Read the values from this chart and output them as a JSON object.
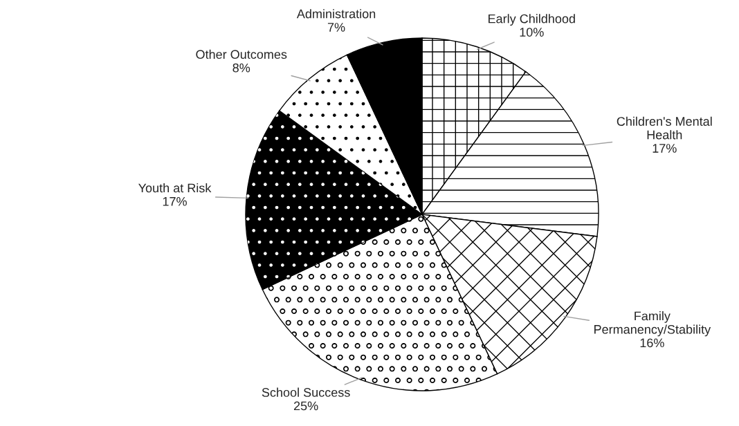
{
  "chart_data": {
    "type": "pie",
    "categories": [
      "Early Childhood",
      "Children's Mental Health",
      "Family Permanency/Stability",
      "School Success",
      "Youth at Risk",
      "Other Outcomes",
      "Administration"
    ],
    "values": [
      10,
      17,
      16,
      25,
      17,
      8,
      7
    ],
    "colors": [
      "#ffffff",
      "#ffffff",
      "#ffffff",
      "#ffffff",
      "#000000",
      "#ffffff",
      "#000000"
    ],
    "value_labels": [
      "10%",
      "17%",
      "16%",
      "25%",
      "17%",
      "8%",
      "7%"
    ]
  }
}
